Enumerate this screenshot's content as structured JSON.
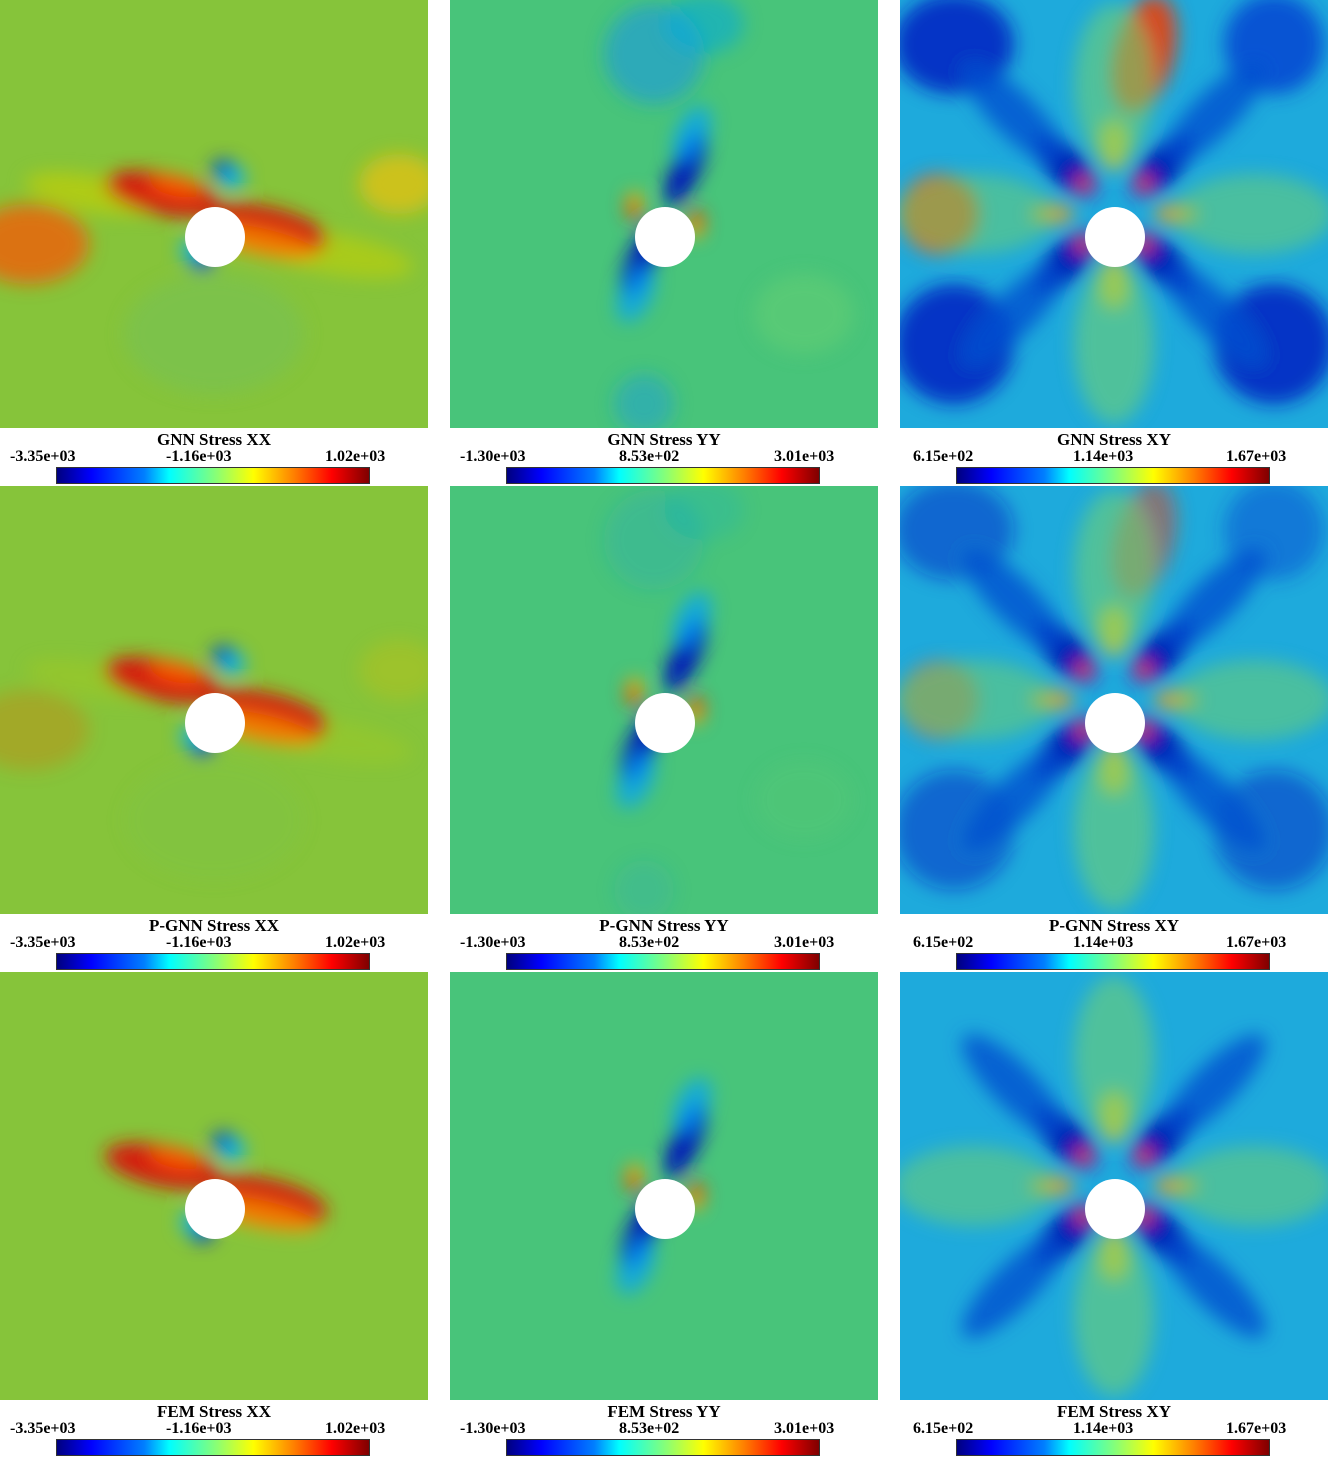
{
  "panels": [
    {
      "title": "GNN Stress XX",
      "min": "-3.35e+03",
      "mid": "-1.16e+03",
      "max": "1.02e+03",
      "field": "xx",
      "noise": 0.9
    },
    {
      "title": "GNN Stress YY",
      "min": "-1.30e+03",
      "mid": "8.53e+02",
      "max": "3.01e+03",
      "field": "yy",
      "noise": 0.9
    },
    {
      "title": "GNN Stress XY",
      "min": "6.15e+02",
      "mid": "1.14e+03",
      "max": "1.67e+03",
      "field": "xy",
      "noise": 0.9
    },
    {
      "title": "P-GNN Stress XX",
      "min": "-3.35e+03",
      "mid": "-1.16e+03",
      "max": "1.02e+03",
      "field": "xx",
      "noise": 0.3
    },
    {
      "title": "P-GNN Stress YY",
      "min": "-1.30e+03",
      "mid": "8.53e+02",
      "max": "3.01e+03",
      "field": "yy",
      "noise": 0.3
    },
    {
      "title": "P-GNN Stress XY",
      "min": "6.15e+02",
      "mid": "1.14e+03",
      "max": "1.67e+03",
      "field": "xy",
      "noise": 0.5
    },
    {
      "title": "FEM Stress XX",
      "min": "-3.35e+03",
      "mid": "-1.16e+03",
      "max": "1.02e+03",
      "field": "xx",
      "noise": 0.0
    },
    {
      "title": "FEM Stress YY",
      "min": "-1.30e+03",
      "mid": "8.53e+02",
      "max": "3.01e+03",
      "field": "yy",
      "noise": 0.0
    },
    {
      "title": "FEM Stress XY",
      "min": "6.15e+02",
      "mid": "1.14e+03",
      "max": "1.67e+03",
      "field": "xy",
      "noise": 0.0
    }
  ],
  "colormap": [
    "#00007f",
    "#0000ff",
    "#007fff",
    "#00ffff",
    "#7fff7f",
    "#ffff00",
    "#ff7f00",
    "#ff0000",
    "#7f0000"
  ]
}
